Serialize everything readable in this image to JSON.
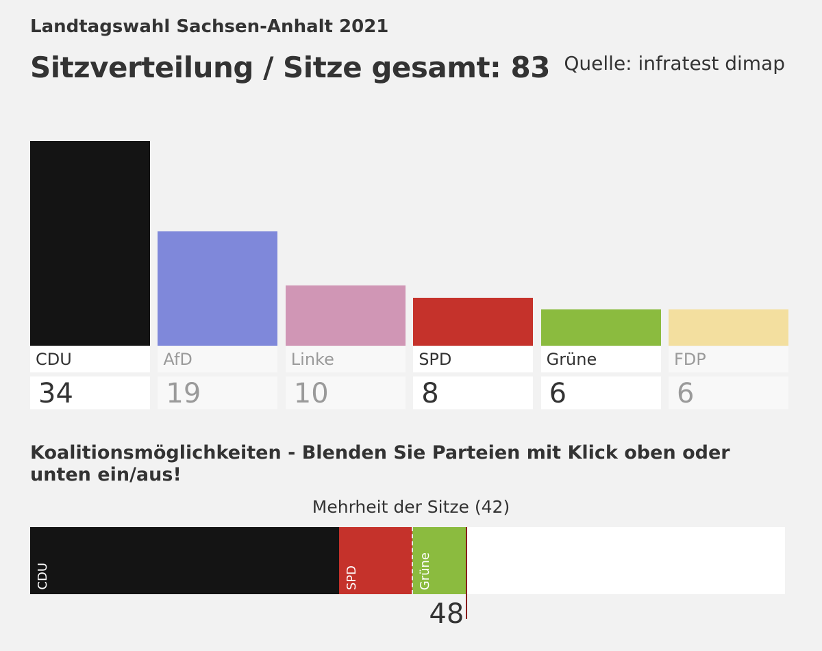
{
  "header": {
    "supertitle": "Landtagswahl Sachsen-Anhalt 2021",
    "title": "Sitzverteilung / Sitze gesamt: 83",
    "source": "Quelle: infratest dimap"
  },
  "chart_data": [
    {
      "type": "bar",
      "categories": [
        "CDU",
        "AfD",
        "Linke",
        "SPD",
        "Grüne",
        "FDP"
      ],
      "values": [
        34,
        19,
        10,
        8,
        6,
        6
      ],
      "colors": [
        "#141414",
        "#7f88da",
        "#d096b5",
        "#c5322b",
        "#8bbb3f",
        "#f3df9f"
      ],
      "active": [
        true,
        false,
        false,
        true,
        true,
        false
      ],
      "total": 83
    },
    {
      "type": "bar",
      "orientation": "horizontal-stacked",
      "series": [
        {
          "name": "CDU",
          "value": 34,
          "color": "#141414"
        },
        {
          "name": "SPD",
          "value": 8,
          "color": "#c5322b"
        },
        {
          "name": "Grüne",
          "value": 6,
          "color": "#8bbb3f"
        }
      ],
      "xlim": [
        0,
        83
      ],
      "majority": 42,
      "majority_label": "Mehrheit der Sitze (42)",
      "coalition_total": "48"
    }
  ],
  "coalition": {
    "title": "Koalitionsmöglichkeiten - Blenden Sie Parteien mit Klick oben oder unten ein/aus!"
  }
}
